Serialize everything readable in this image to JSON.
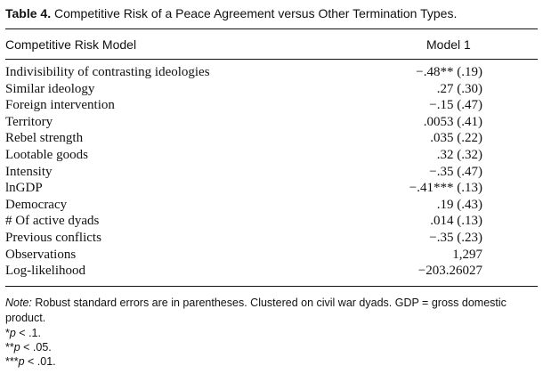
{
  "caption": {
    "label": "Table 4.",
    "title": "Competitive Risk of a Peace Agreement versus Other Termination Types."
  },
  "header": {
    "model_label": "Competitive Risk Model",
    "column": "Model 1"
  },
  "rows": [
    {
      "name": "Indivisibility of contrasting ideologies",
      "value": "−.48** (.19)"
    },
    {
      "name": "Similar ideology",
      "value": ".27 (.30)"
    },
    {
      "name": "Foreign intervention",
      "value": "−.15 (.47)"
    },
    {
      "name": "Territory",
      "value": ".0053 (.41)"
    },
    {
      "name": "Rebel strength",
      "value": ".035 (.22)"
    },
    {
      "name": "Lootable goods",
      "value": ".32 (.32)"
    },
    {
      "name": "Intensity",
      "value": "−.35 (.47)"
    },
    {
      "name": "lnGDP",
      "value": "−.41*** (.13)"
    },
    {
      "name": "Democracy",
      "value": ".19 (.43)"
    },
    {
      "name": "# Of active dyads",
      "value": ".014 (.13)"
    },
    {
      "name": "Previous conflicts",
      "value": "−.35 (.23)"
    },
    {
      "name": "Observations",
      "value": "1,297"
    },
    {
      "name": "Log-likelihood",
      "value": "−203.26027"
    }
  ],
  "note": {
    "label": "Note:",
    "text": " Robust standard errors are in parentheses. Clustered on civil war dyads. GDP = gross domestic product."
  },
  "footnotes": [
    {
      "stars": "*",
      "p": "p",
      "text": " < .1."
    },
    {
      "stars": "**",
      "p": "p",
      "text": " < .05."
    },
    {
      "stars": "***",
      "p": "p",
      "text": " < .01."
    }
  ]
}
